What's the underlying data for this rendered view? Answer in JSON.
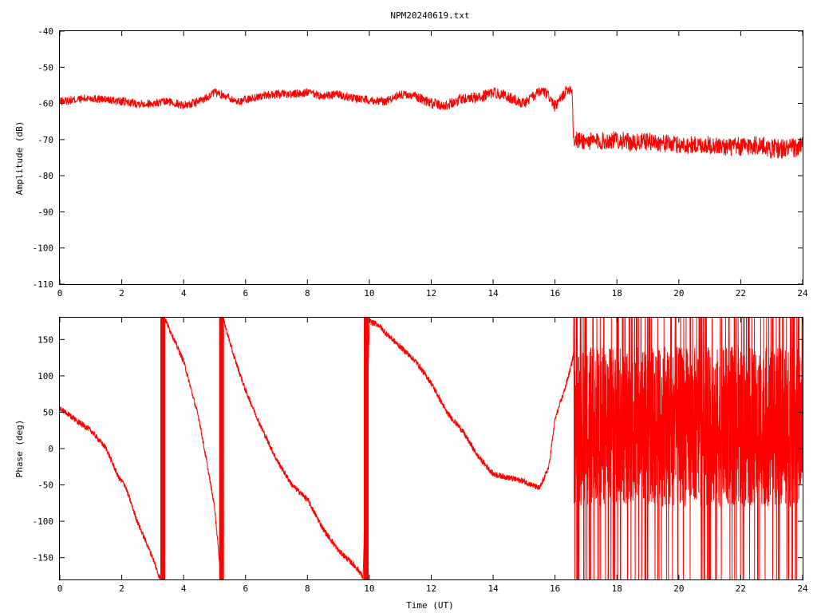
{
  "chart_data": [
    {
      "type": "line",
      "title": "NPM20240619.txt",
      "xlabel": "",
      "ylabel": "Amplitude (dB)",
      "xlim": [
        0,
        24
      ],
      "ylim": [
        -110,
        -40
      ],
      "x_ticks": [
        "0",
        "2",
        "4",
        "6",
        "8",
        "10",
        "12",
        "14",
        "16",
        "18",
        "20",
        "22",
        "24"
      ],
      "y_ticks": [
        "-110",
        "-100",
        "-90",
        "-80",
        "-70",
        "-60",
        "-50",
        "-40"
      ],
      "grid": false,
      "color": "#ff0000",
      "series": [
        {
          "x": [
            0,
            0.5,
            1,
            1.5,
            2,
            2.5,
            3,
            3.5,
            4,
            4.3,
            4.6,
            5,
            5.4,
            5.7,
            6,
            6.5,
            7,
            7.5,
            8,
            8.5,
            9,
            9.5,
            10,
            10.5,
            11,
            11.5,
            12,
            12.5,
            13,
            13.5,
            14,
            14.3,
            14.7,
            15,
            15.3,
            15.6,
            15.8,
            16,
            16.2,
            16.4,
            16.55,
            16.6,
            17,
            17.5,
            18,
            18.5,
            19,
            19.5,
            20,
            20.5,
            21,
            21.5,
            22,
            22.5,
            23,
            23.5,
            24
          ],
          "y": [
            -59.5,
            -59,
            -58.5,
            -59,
            -59.5,
            -60,
            -60,
            -59.5,
            -60.5,
            -60,
            -59,
            -57,
            -58,
            -59.5,
            -59,
            -58,
            -57.5,
            -57.5,
            -57,
            -58,
            -57.5,
            -58.5,
            -59,
            -59.5,
            -57.5,
            -58,
            -60,
            -60.5,
            -58.5,
            -58.5,
            -57,
            -57.5,
            -59,
            -60,
            -58,
            -56.5,
            -58,
            -61,
            -58.5,
            -56,
            -56,
            -70,
            -70.5,
            -70.5,
            -70,
            -71,
            -70.5,
            -71,
            -71.5,
            -71.5,
            -71.5,
            -72,
            -72,
            -71.5,
            -72.5,
            -72.5,
            -72
          ],
          "noise": [
            1.2,
            1.2,
            1.2,
            1.2,
            1.2,
            1.2,
            1.2,
            1.2,
            1.2,
            1.2,
            1.2,
            1.2,
            1.2,
            1.2,
            1.2,
            1.2,
            1.2,
            1.2,
            1.2,
            1.2,
            1.2,
            1.2,
            1.2,
            1.2,
            1.2,
            1.2,
            1.5,
            1.5,
            1.5,
            1.5,
            1.5,
            1.5,
            1.5,
            1.5,
            1.5,
            1.5,
            1.5,
            1.5,
            1.5,
            1.5,
            1.5,
            2.5,
            2.5,
            2.5,
            2.5,
            2.5,
            2.5,
            2.5,
            2.5,
            2.5,
            2.5,
            2.5,
            2.8,
            2.8,
            2.8,
            2.8,
            2.8
          ]
        }
      ]
    },
    {
      "type": "line",
      "title": "",
      "xlabel": "Time (UT)",
      "ylabel": "Phase (deg)",
      "xlim": [
        0,
        24
      ],
      "ylim": [
        -180,
        180
      ],
      "x_ticks": [
        "0",
        "2",
        "4",
        "6",
        "8",
        "10",
        "12",
        "14",
        "16",
        "18",
        "20",
        "22",
        "24"
      ],
      "y_ticks": [
        "-150",
        "-100",
        "-50",
        "0",
        "50",
        "100",
        "150"
      ],
      "grid": false,
      "color": "#ff0000",
      "series": [
        {
          "x": [
            0,
            0.5,
            1,
            1.5,
            1.9,
            2.1,
            2.5,
            3,
            3.2,
            3.3,
            3.35,
            3.4,
            4,
            4.5,
            5,
            5.2,
            5.25,
            5.3,
            5.6,
            6,
            6.5,
            7,
            7.5,
            8,
            8.5,
            9,
            9.5,
            9.7,
            9.8,
            10,
            10.3,
            10.5,
            11,
            11.5,
            12,
            12.5,
            13,
            13.5,
            14,
            14.5,
            15,
            15.5,
            15.8,
            16,
            16.3,
            16.5,
            16.6
          ],
          "y": [
            55,
            40,
            25,
            0,
            -40,
            -50,
            -100,
            -150,
            -175,
            -180,
            180,
            178,
            120,
            40,
            -80,
            -175,
            180,
            175,
            130,
            80,
            30,
            -15,
            -50,
            -70,
            -110,
            -140,
            -160,
            -170,
            -178,
            175,
            170,
            160,
            140,
            120,
            90,
            50,
            25,
            -10,
            -35,
            -40,
            -45,
            -55,
            -25,
            40,
            80,
            110,
            130
          ],
          "noise": [
            4,
            4,
            4,
            4,
            4,
            4,
            4,
            4,
            4,
            4,
            4,
            4,
            4,
            4,
            4,
            4,
            4,
            4,
            4,
            4,
            4,
            4,
            4,
            4,
            4,
            4,
            4,
            4,
            4,
            4,
            4,
            4,
            4,
            4,
            4,
            4,
            4,
            4,
            4,
            4,
            4,
            4,
            4,
            4,
            4,
            4,
            4
          ]
        }
      ]
    }
  ]
}
